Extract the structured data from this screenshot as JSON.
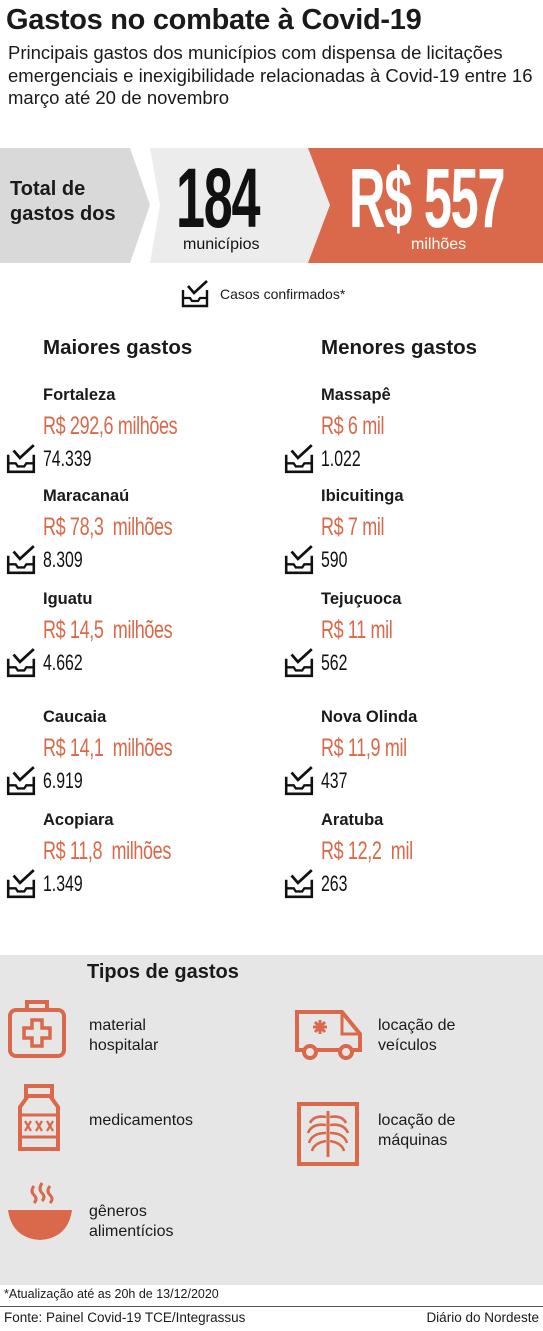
{
  "title": "Gastos no combate à Covid-19",
  "subtitle": "Principais gastos dos municípios com dispensa de licitações emergenciais e inexigibilidade relacionadas à Covid-19 entre 16 março até 20 de novembro",
  "summary": {
    "total_label_line1": "Total de",
    "total_label_line2": "gastos dos",
    "count": "184",
    "count_unit": "municípios",
    "money": "R$ 557",
    "money_unit": "milhões"
  },
  "legend": {
    "label": "Casos confirmados*",
    "icon": "checkbox-tray-icon"
  },
  "biggest": {
    "heading": "Maiores gastos",
    "items": [
      {
        "city": "Fortaleza",
        "amount": "R$ 292,6 milhões",
        "cases": "74.339"
      },
      {
        "city": "Maracanaú",
        "amount": "R$ 78,3  milhões",
        "cases": "8.309"
      },
      {
        "city": "Iguatu",
        "amount": "R$ 14,5  milhões",
        "cases": "4.662"
      },
      {
        "city": "Caucaia",
        "amount": "R$ 14,1  milhões",
        "cases": "6.919"
      },
      {
        "city": "Acopiara",
        "amount": "R$ 11,8  milhões",
        "cases": "1.349"
      }
    ]
  },
  "smallest": {
    "heading": "Menores gastos",
    "items": [
      {
        "city": "Massapê",
        "amount": "R$ 6 mil",
        "cases": "1.022"
      },
      {
        "city": "Ibicuitinga",
        "amount": "R$ 7 mil",
        "cases": "590"
      },
      {
        "city": "Tejuçuoca",
        "amount": "R$ 11 mil",
        "cases": "562"
      },
      {
        "city": "Nova Olinda",
        "amount": "R$ 11,9 mil",
        "cases": "437"
      },
      {
        "city": "Aratuba",
        "amount": "R$ 12,2  mil",
        "cases": "263"
      }
    ]
  },
  "types": {
    "heading": "Tipos de gastos",
    "items": [
      {
        "icon": "medical-kit-icon",
        "line1": "material",
        "line2": "hospitalar"
      },
      {
        "icon": "ambulance-icon",
        "line1": "locação de",
        "line2": "veículos"
      },
      {
        "icon": "medicine-bottle-icon",
        "line1": "medicamentos",
        "line2": ""
      },
      {
        "icon": "xray-machine-icon",
        "line1": "locação de",
        "line2": "máquinas"
      },
      {
        "icon": "food-bowl-icon",
        "line1": "gêneros",
        "line2": "alimentícios"
      }
    ]
  },
  "footnote": "*Atualização até as 20h de 13/12/2020",
  "source": "Fonte: Painel Covid-19 TCE/Integrassus",
  "brand": "Diário do Nordeste",
  "colors": {
    "accent": "#d9694a",
    "gray": "#d9d9d9",
    "panel": "#e6e6e6"
  }
}
